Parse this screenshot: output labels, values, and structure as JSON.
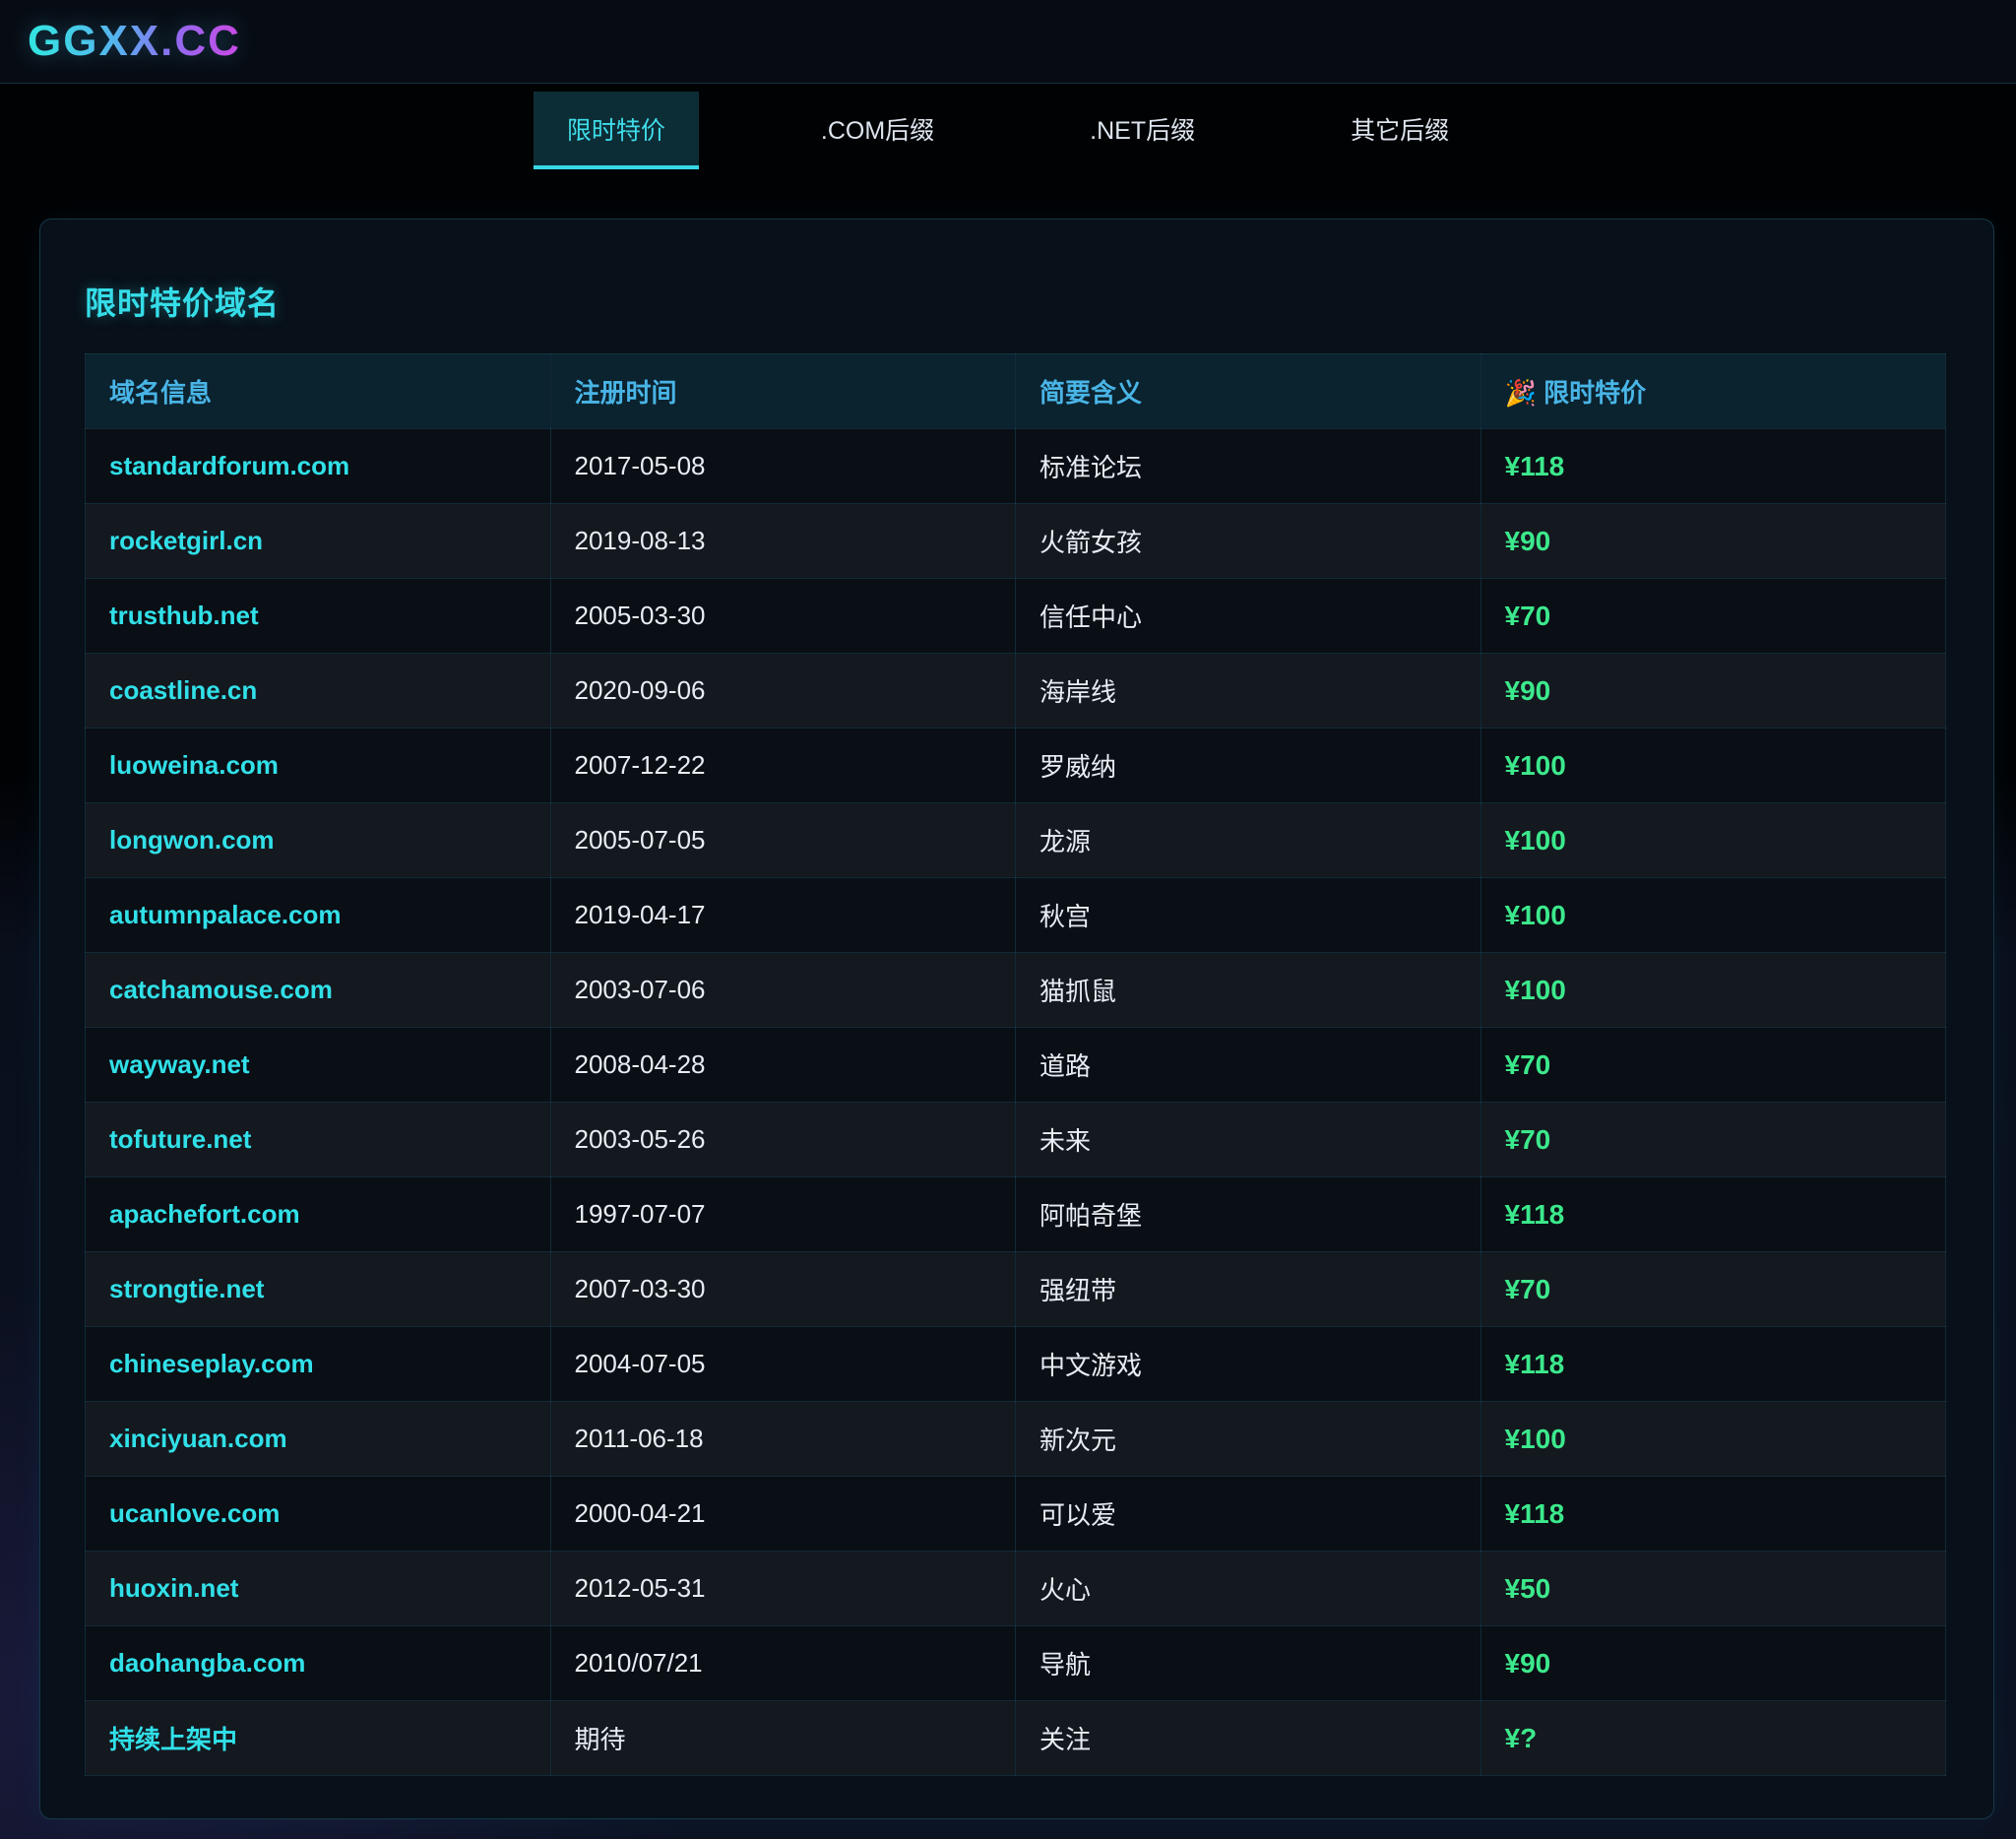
{
  "brand": {
    "logo": "GGXX.CC"
  },
  "nav": {
    "tabs": [
      {
        "label": "限时特价",
        "active": true
      },
      {
        "label": ".COM后缀",
        "active": false
      },
      {
        "label": ".NET后缀",
        "active": false
      },
      {
        "label": "其它后缀",
        "active": false
      }
    ]
  },
  "section": {
    "title": "限时特价域名"
  },
  "table": {
    "columns": [
      "域名信息",
      "注册时间",
      "简要含义",
      "🎉 限时特价"
    ],
    "rows": [
      {
        "domain": "standardforum.com",
        "registered": "2017-05-08",
        "meaning": "标准论坛",
        "price": "¥118"
      },
      {
        "domain": "rocketgirl.cn",
        "registered": "2019-08-13",
        "meaning": "火箭女孩",
        "price": "¥90"
      },
      {
        "domain": "trusthub.net",
        "registered": "2005-03-30",
        "meaning": "信任中心",
        "price": "¥70"
      },
      {
        "domain": "coastline.cn",
        "registered": "2020-09-06",
        "meaning": "海岸线",
        "price": "¥90"
      },
      {
        "domain": "luoweina.com",
        "registered": "2007-12-22",
        "meaning": "罗威纳",
        "price": "¥100"
      },
      {
        "domain": "longwon.com",
        "registered": "2005-07-05",
        "meaning": "龙源",
        "price": "¥100"
      },
      {
        "domain": "autumnpalace.com",
        "registered": "2019-04-17",
        "meaning": "秋宫",
        "price": "¥100"
      },
      {
        "domain": "catchamouse.com",
        "registered": "2003-07-06",
        "meaning": "猫抓鼠",
        "price": "¥100"
      },
      {
        "domain": "wayway.net",
        "registered": "2008-04-28",
        "meaning": "道路",
        "price": "¥70"
      },
      {
        "domain": "tofuture.net",
        "registered": "2003-05-26",
        "meaning": "未来",
        "price": "¥70"
      },
      {
        "domain": "apachefort.com",
        "registered": "1997-07-07",
        "meaning": "阿帕奇堡",
        "price": "¥118"
      },
      {
        "domain": "strongtie.net",
        "registered": "2007-03-30",
        "meaning": "强纽带",
        "price": "¥70"
      },
      {
        "domain": "chineseplay.com",
        "registered": "2004-07-05",
        "meaning": "中文游戏",
        "price": "¥118"
      },
      {
        "domain": "xinciyuan.com",
        "registered": "2011-06-18",
        "meaning": "新次元",
        "price": "¥100"
      },
      {
        "domain": "ucanlove.com",
        "registered": "2000-04-21",
        "meaning": "可以爱",
        "price": "¥118"
      },
      {
        "domain": "huoxin.net",
        "registered": "2012-05-31",
        "meaning": "火心",
        "price": "¥50"
      },
      {
        "domain": "daohangba.com",
        "registered": "2010/07/21",
        "meaning": "导航",
        "price": "¥90"
      },
      {
        "domain": "持续上架中",
        "registered": "期待",
        "meaning": "关注",
        "price": "¥?"
      }
    ]
  },
  "colors": {
    "accent_cyan": "#31e0e8",
    "accent_green": "#3ce98c",
    "header_blue": "#49b5e6",
    "tab_active_underline": "#36d8e6",
    "logo_gradient_start": "#35e2e2",
    "logo_gradient_end": "#c44de6"
  }
}
